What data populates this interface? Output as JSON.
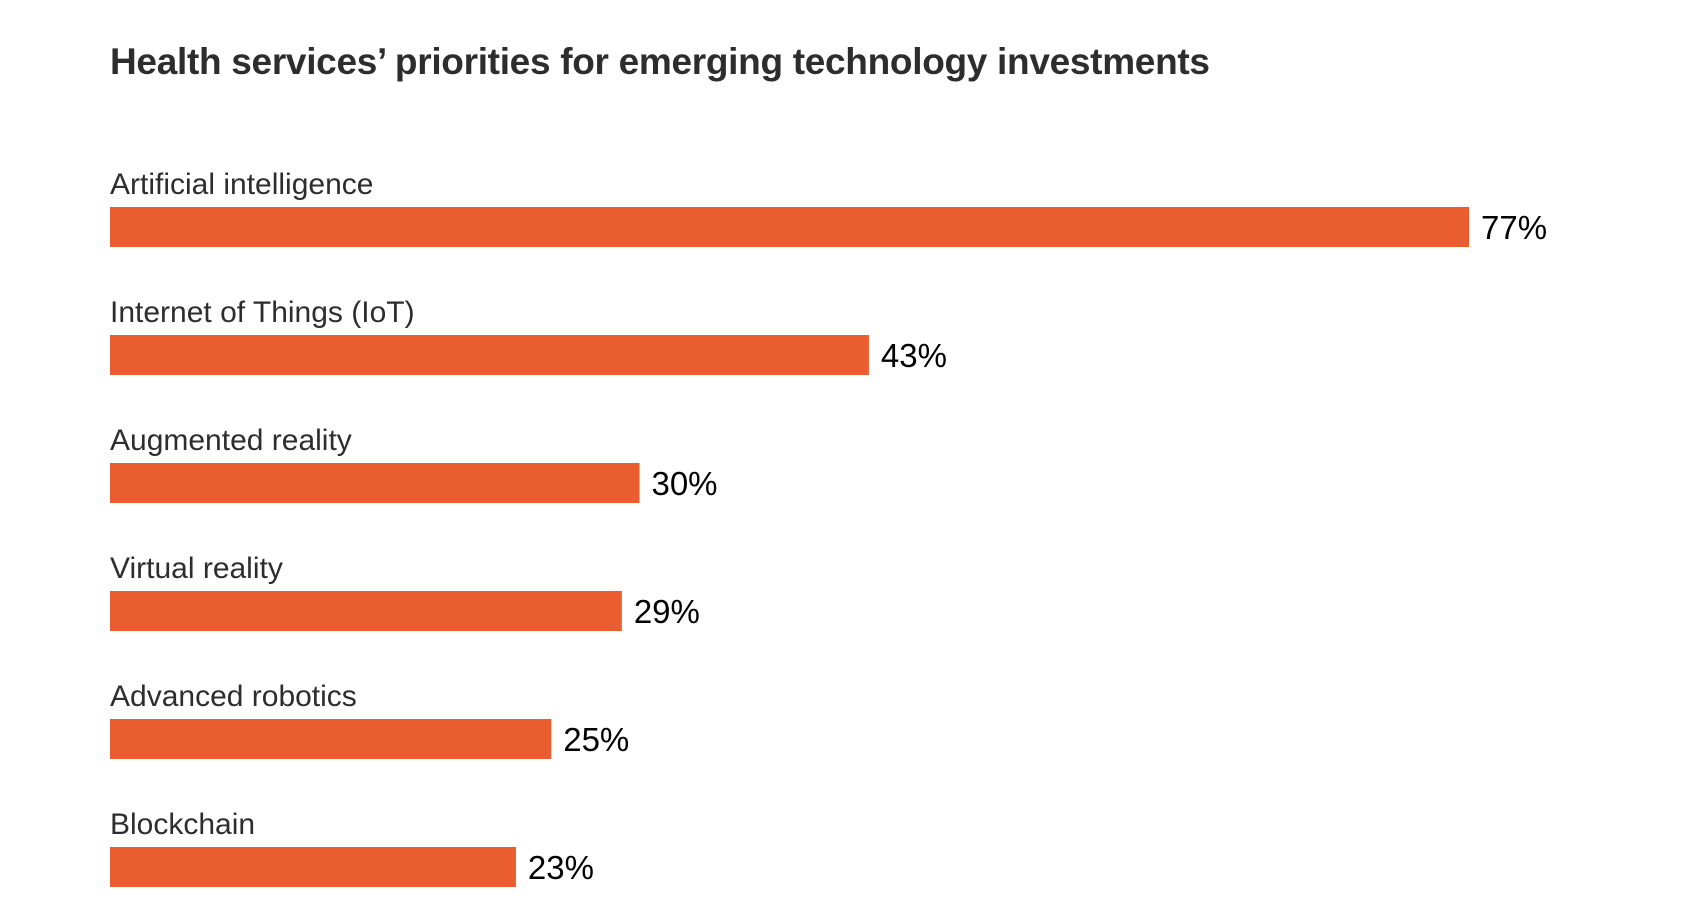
{
  "chart_data": {
    "type": "bar",
    "orientation": "horizontal",
    "title": "Health services’ priorities for emerging technology investments",
    "xlabel": "",
    "ylabel": "",
    "categories": [
      "Artificial intelligence",
      "Internet of Things (IoT)",
      "Augmented reality",
      "Virtual reality",
      "Advanced robotics",
      "Blockchain"
    ],
    "values": [
      77,
      43,
      30,
      29,
      25,
      23
    ],
    "value_labels": [
      "77%",
      "43%",
      "30%",
      "29%",
      "25%",
      "23%"
    ],
    "unit": "%",
    "xlim": [
      0,
      77
    ],
    "grid": false,
    "legend": "none",
    "bar_color": "#E95D2E"
  }
}
